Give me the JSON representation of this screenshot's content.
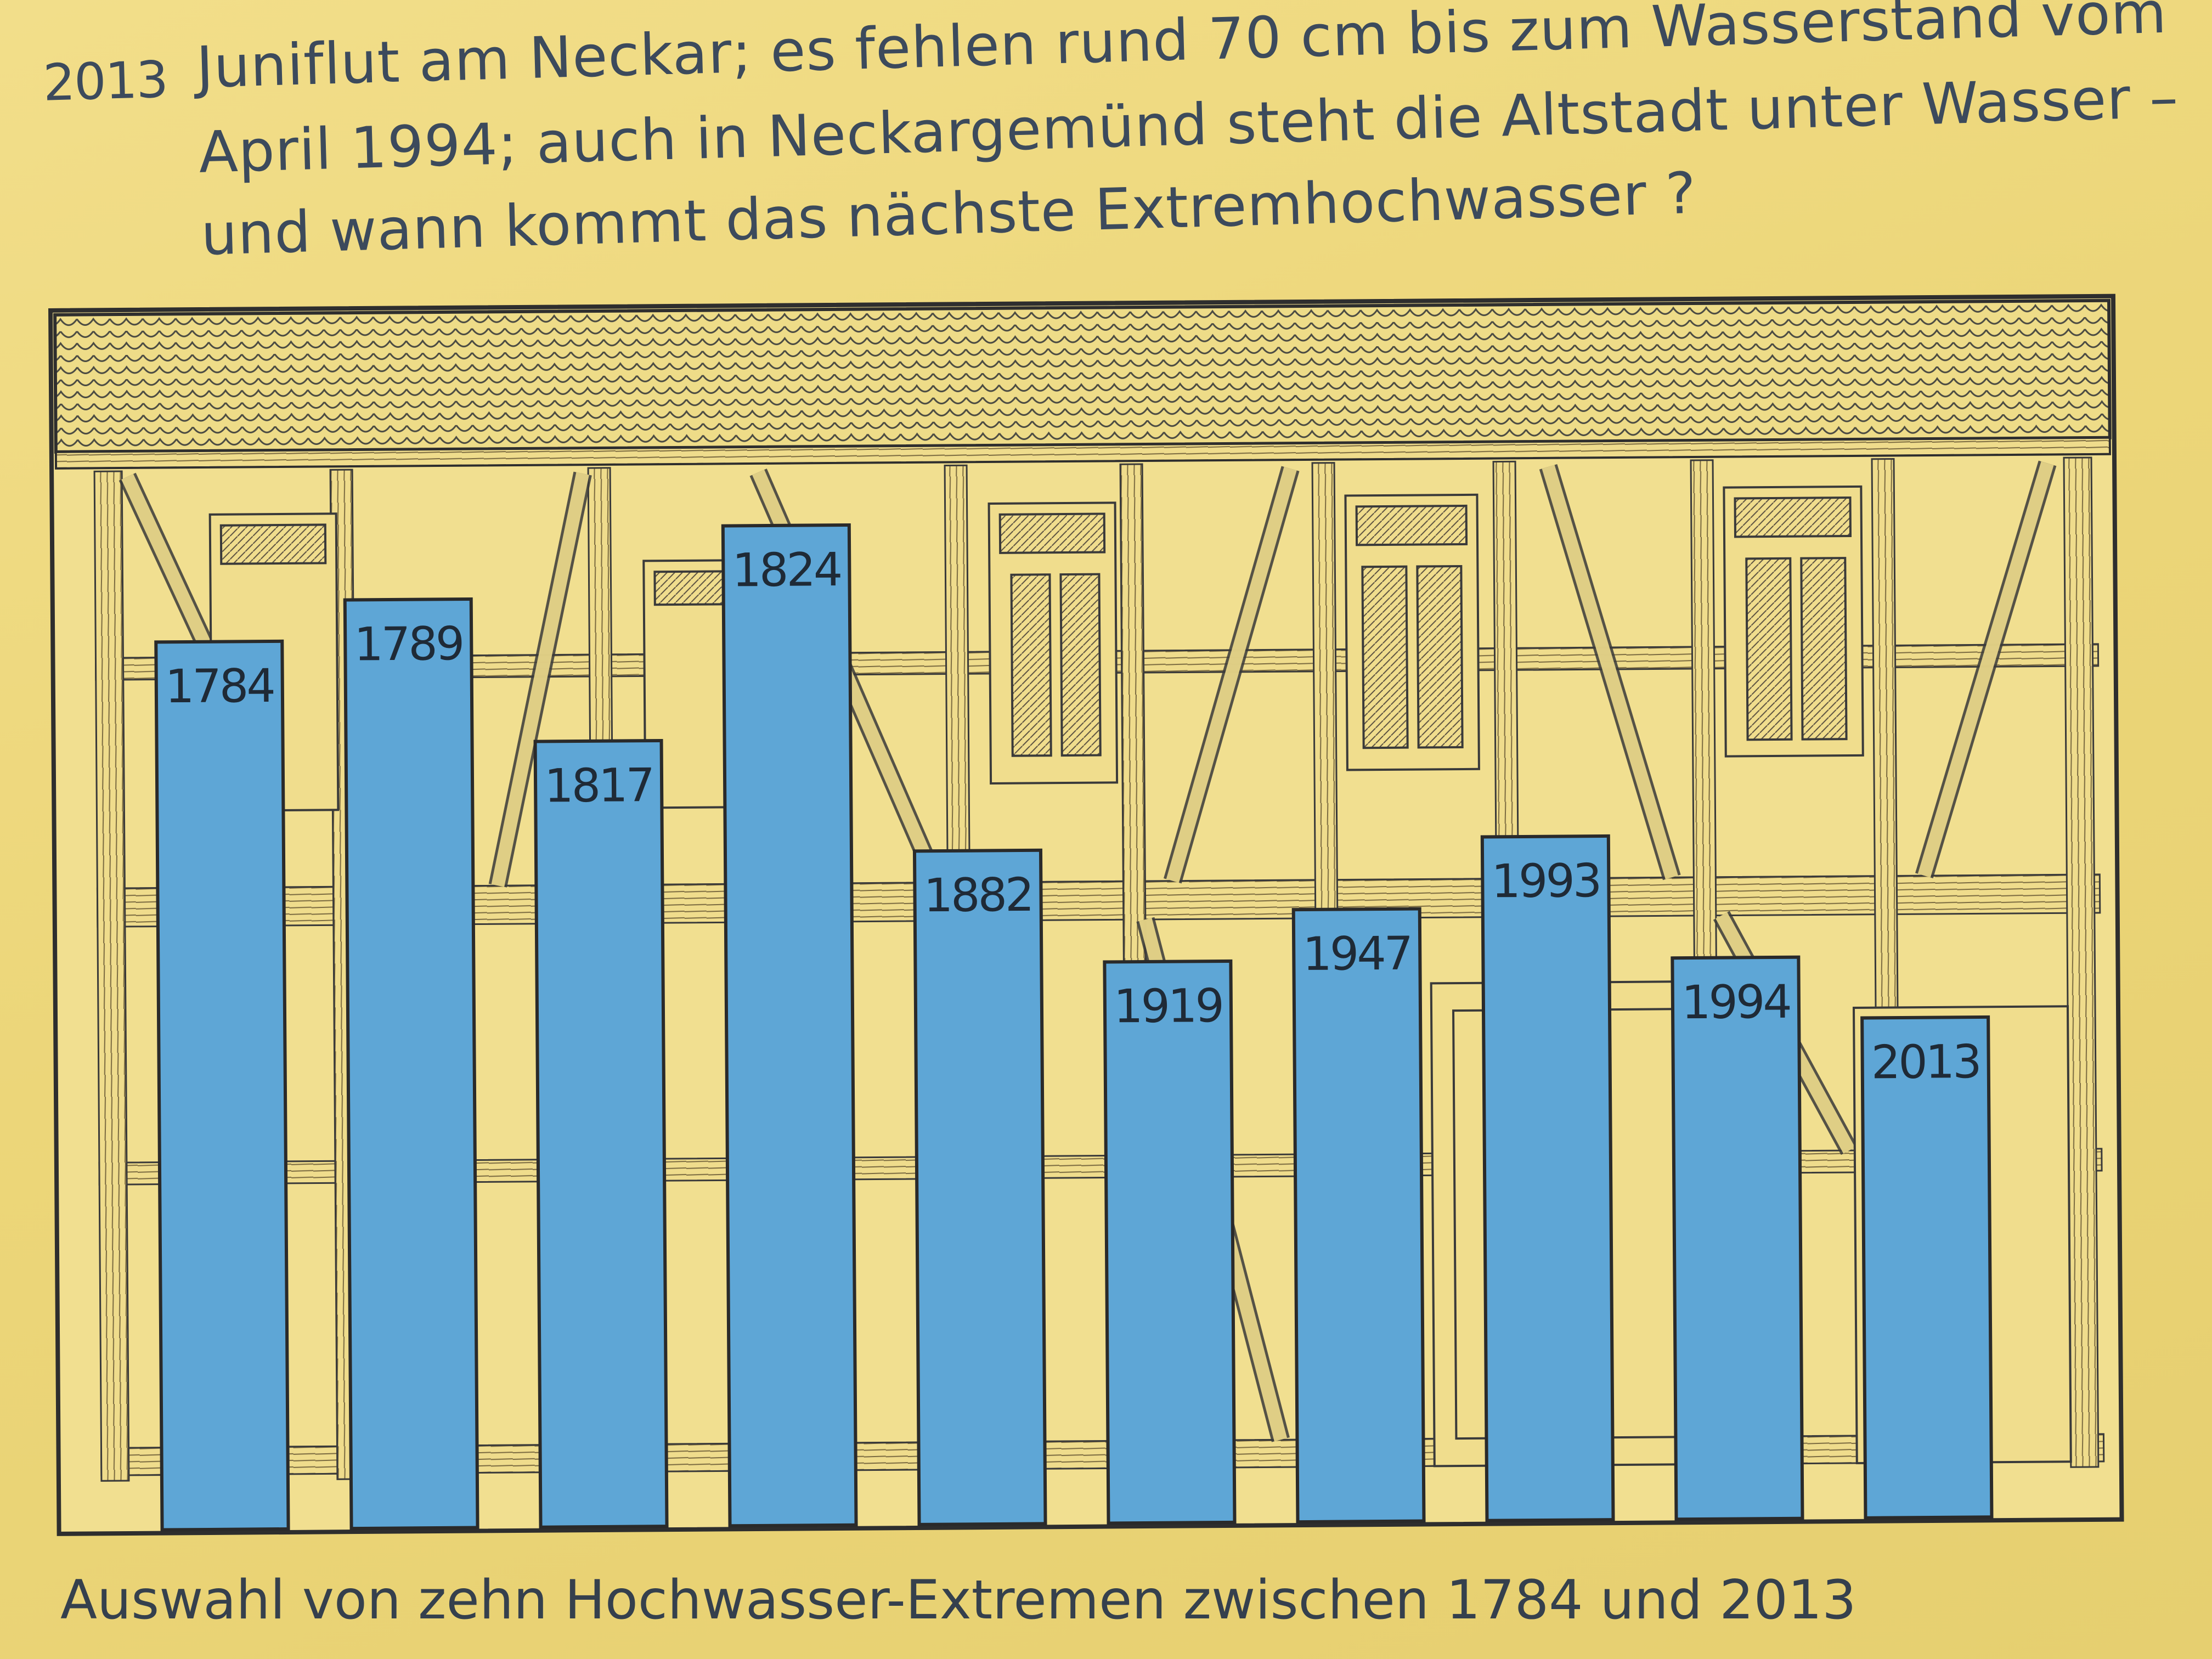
{
  "headline": {
    "year": "2013",
    "lines": [
      "Juniflut am Neckar; es fehlen rund 70 cm bis zum Wasserstand vom",
      "April 1994; auch in Neckargemünd steht die Altstadt unter Wasser –",
      "und wann kommt das nächste Extremhochwasser ?"
    ]
  },
  "chart_data": {
    "type": "bar",
    "title": "",
    "xlabel": "",
    "ylabel": "",
    "categories": [
      "1784",
      "1789",
      "1817",
      "1824",
      "1882",
      "1919",
      "1947",
      "1993",
      "1994",
      "2013"
    ],
    "series": [
      {
        "values": [
          0.87,
          0.91,
          0.77,
          0.98,
          0.66,
          0.55,
          0.6,
          0.67,
          0.55,
          0.49
        ]
      }
    ],
    "value_note_axis": "relative flood height",
    "ylim": [
      0,
      1
    ],
    "bar_color": "#5ea6d6",
    "background": "half-timbered house drawing"
  },
  "caption": "Auswahl von zehn Hochwasser-Extremen zwischen 1784 und 2013"
}
